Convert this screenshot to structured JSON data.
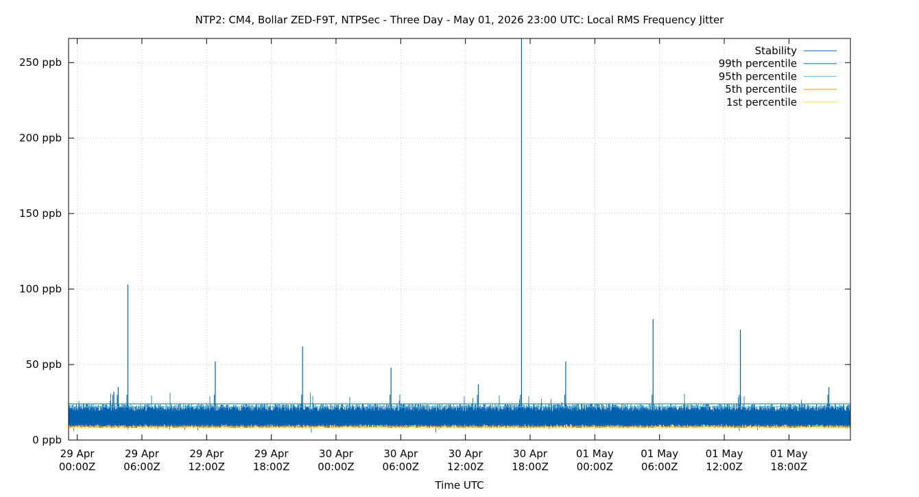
{
  "chart_data": {
    "type": "line",
    "title": "NTP2: CM4, Bollar ZED-F9T, NTPSec - Three Day - May 01, 2026 23:00 UTC: Local RMS Frequency Jitter",
    "xlabel": "Time UTC",
    "ylabel": "",
    "ylim": [
      0,
      266
    ],
    "y_ticks": [
      {
        "value": 0,
        "label": "0 ppb"
      },
      {
        "value": 50,
        "label": "50 ppb"
      },
      {
        "value": 100,
        "label": "100 ppb"
      },
      {
        "value": 150,
        "label": "150 ppb"
      },
      {
        "value": 200,
        "label": "200 ppb"
      },
      {
        "value": 250,
        "label": "250 ppb"
      }
    ],
    "x_range_hours": [
      -0.8,
      71.7
    ],
    "x_ticks": [
      {
        "hours": 0,
        "line1": "29 Apr",
        "line2": "00:00Z"
      },
      {
        "hours": 6,
        "line1": "29 Apr",
        "line2": "06:00Z"
      },
      {
        "hours": 12,
        "line1": "29 Apr",
        "line2": "12:00Z"
      },
      {
        "hours": 18,
        "line1": "29 Apr",
        "line2": "18:00Z"
      },
      {
        "hours": 24,
        "line1": "30 Apr",
        "line2": "00:00Z"
      },
      {
        "hours": 30,
        "line1": "30 Apr",
        "line2": "06:00Z"
      },
      {
        "hours": 36,
        "line1": "30 Apr",
        "line2": "12:00Z"
      },
      {
        "hours": 42,
        "line1": "30 Apr",
        "line2": "18:00Z"
      },
      {
        "hours": 48,
        "line1": "01 May",
        "line2": "00:00Z"
      },
      {
        "hours": 54,
        "line1": "01 May",
        "line2": "06:00Z"
      },
      {
        "hours": 60,
        "line1": "01 May",
        "line2": "12:00Z"
      },
      {
        "hours": 66,
        "line1": "01 May",
        "line2": "18:00Z"
      }
    ],
    "grid": true,
    "legend_position": "top-right",
    "series": [
      {
        "name": "Stability",
        "color": "#0060ad",
        "baseline_range": [
          9,
          22
        ],
        "spikes": [
          {
            "hours": 3.4,
            "value": 32
          },
          {
            "hours": 3.8,
            "value": 35
          },
          {
            "hours": 4.7,
            "value": 103
          },
          {
            "hours": 12.8,
            "value": 52
          },
          {
            "hours": 20.9,
            "value": 62
          },
          {
            "hours": 29.1,
            "value": 48
          },
          {
            "hours": 37.2,
            "value": 37
          },
          {
            "hours": 41.2,
            "value": 266
          },
          {
            "hours": 45.3,
            "value": 52
          },
          {
            "hours": 53.4,
            "value": 80
          },
          {
            "hours": 61.5,
            "value": 73
          },
          {
            "hours": 69.7,
            "value": 35
          }
        ]
      },
      {
        "name": "99th percentile",
        "color": "#008080",
        "value": 24
      },
      {
        "name": "95th percentile",
        "color": "#56b4e9",
        "value": 22
      },
      {
        "name": "5th percentile",
        "color": "#e69f00",
        "value": 9
      },
      {
        "name": "1st percentile",
        "color": "#f0e442",
        "value": 8
      }
    ]
  }
}
